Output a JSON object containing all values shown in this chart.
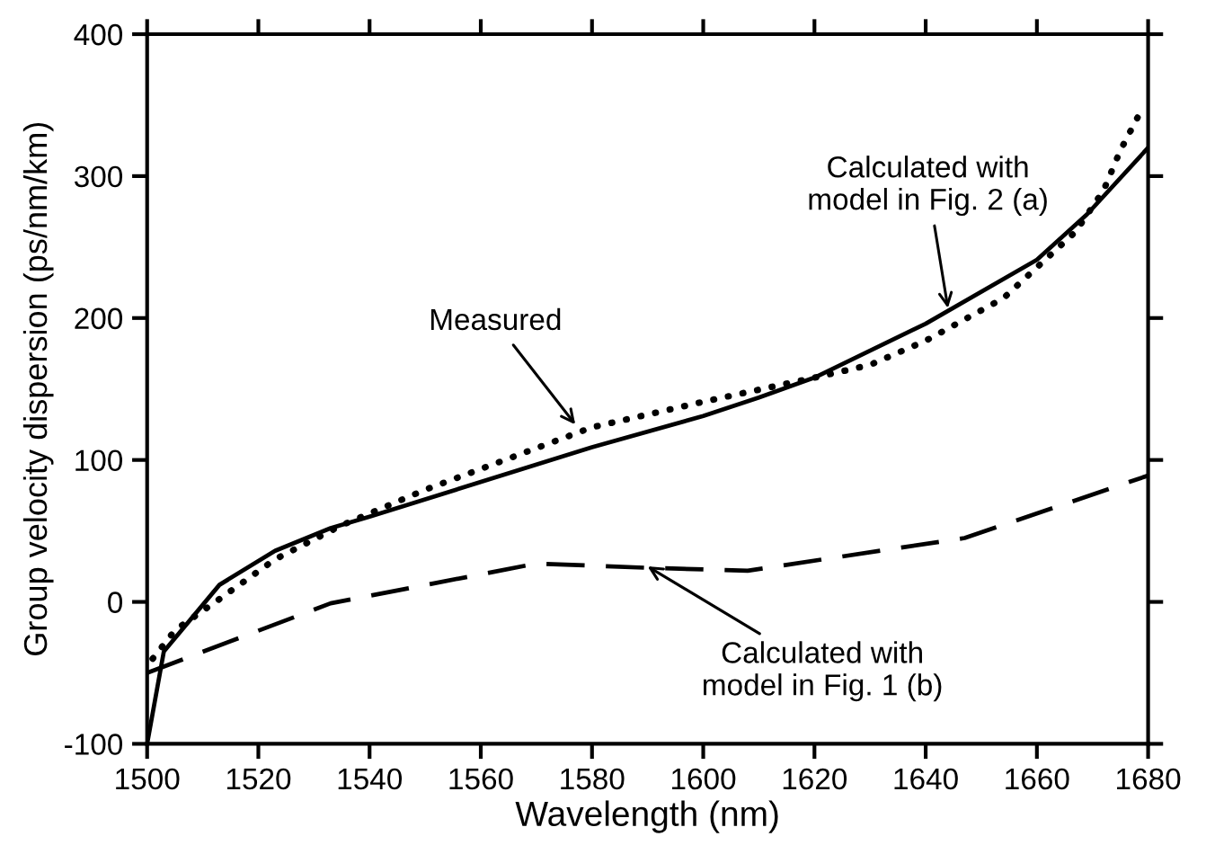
{
  "chart_data": {
    "type": "line",
    "xlabel": "Wavelength (nm)",
    "ylabel": "Group velocity dispersion (ps/nm/km)",
    "xlim": [
      1500,
      1680
    ],
    "xticks": [
      1500,
      1520,
      1540,
      1560,
      1580,
      1600,
      1620,
      1640,
      1660,
      1680
    ],
    "ylim": [
      -100,
      400
    ],
    "yticks": [
      -100,
      0,
      100,
      200,
      300,
      400
    ],
    "grid": false,
    "series": [
      {
        "color": "#000000",
        "line_style": "solid",
        "x": [
          1500,
          1503,
          1513,
          1523,
          1533,
          1540,
          1580,
          1600,
          1610,
          1620,
          1640,
          1660,
          1669,
          1680
        ],
        "values": [
          -100,
          -35,
          12,
          36,
          52,
          60,
          109,
          131,
          144,
          158,
          196,
          241,
          273,
          320
        ]
      },
      {
        "color": "#000000",
        "line_style": "dotted",
        "x": [
          1501,
          1505,
          1513,
          1523,
          1535,
          1550,
          1565,
          1580,
          1600,
          1620,
          1630,
          1640,
          1654,
          1667,
          1672,
          1675,
          1679
        ],
        "values": [
          -40,
          -20,
          2,
          30,
          54,
          79,
          101,
          123,
          141,
          158,
          167,
          184,
          214,
          261,
          290,
          318,
          348
        ]
      },
      {
        "color": "#000000",
        "line_style": "dashed",
        "x": [
          1500,
          1533,
          1570,
          1590,
          1608,
          1647,
          1680
        ],
        "values": [
          -50,
          -1,
          27,
          24,
          22,
          45,
          89
        ]
      }
    ],
    "annotations": [
      {
        "text": "Measured",
        "x": 1577,
        "y": 125
      },
      {
        "text": "Calculated with\nmodel in Fig. 2 (a)",
        "x": 1644,
        "y": 207
      },
      {
        "text": "Calculated with\nmodel in Fig. 1 (b)",
        "x": 1590,
        "y": 25
      }
    ]
  }
}
